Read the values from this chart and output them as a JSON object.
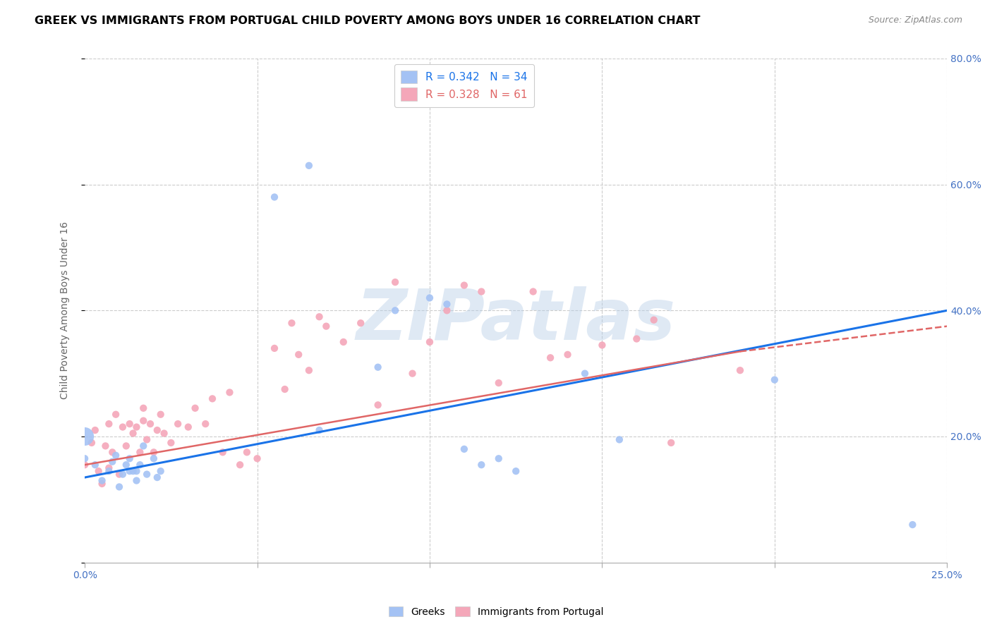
{
  "title": "GREEK VS IMMIGRANTS FROM PORTUGAL CHILD POVERTY AMONG BOYS UNDER 16 CORRELATION CHART",
  "source": "Source: ZipAtlas.com",
  "ylabel": "Child Poverty Among Boys Under 16",
  "xlim": [
    0.0,
    0.25
  ],
  "ylim": [
    0.0,
    0.8
  ],
  "xticks": [
    0.0,
    0.05,
    0.1,
    0.15,
    0.2,
    0.25
  ],
  "yticks": [
    0.0,
    0.2,
    0.4,
    0.6,
    0.8
  ],
  "xticklabels": [
    "0.0%",
    "",
    "",
    "",
    "",
    "25.0%"
  ],
  "yticklabels_right": [
    "",
    "20.0%",
    "40.0%",
    "60.0%",
    "80.0%"
  ],
  "greek_color": "#a4c2f4",
  "portugal_color": "#f4a7b9",
  "greek_line_color": "#1a73e8",
  "portugal_line_color": "#e06666",
  "legend_R_greek": "0.342",
  "legend_N_greek": "34",
  "legend_R_portugal": "0.328",
  "legend_N_portugal": "61",
  "watermark": "ZIPatlas",
  "background_color": "#ffffff",
  "grid_color": "#cccccc",
  "title_color": "#000000",
  "axis_label_color": "#666666",
  "tick_color": "#4472c4",
  "greek_points_x": [
    0.0,
    0.003,
    0.005,
    0.007,
    0.008,
    0.009,
    0.01,
    0.011,
    0.012,
    0.013,
    0.013,
    0.014,
    0.015,
    0.015,
    0.016,
    0.017,
    0.018,
    0.02,
    0.021,
    0.022,
    0.055,
    0.065,
    0.068,
    0.085,
    0.09,
    0.1,
    0.105,
    0.11,
    0.115,
    0.12,
    0.125,
    0.145,
    0.155,
    0.2,
    0.24
  ],
  "greek_points_y": [
    0.165,
    0.155,
    0.13,
    0.145,
    0.16,
    0.17,
    0.12,
    0.14,
    0.155,
    0.145,
    0.165,
    0.145,
    0.13,
    0.145,
    0.155,
    0.185,
    0.14,
    0.165,
    0.135,
    0.145,
    0.58,
    0.63,
    0.21,
    0.31,
    0.4,
    0.42,
    0.41,
    0.18,
    0.155,
    0.165,
    0.145,
    0.3,
    0.195,
    0.29,
    0.06
  ],
  "greek_large_x": [
    0.0
  ],
  "greek_large_y": [
    0.2
  ],
  "portugal_points_x": [
    0.0,
    0.002,
    0.003,
    0.004,
    0.005,
    0.006,
    0.007,
    0.007,
    0.008,
    0.009,
    0.01,
    0.011,
    0.012,
    0.013,
    0.014,
    0.015,
    0.016,
    0.017,
    0.017,
    0.018,
    0.019,
    0.02,
    0.021,
    0.022,
    0.023,
    0.025,
    0.027,
    0.03,
    0.032,
    0.035,
    0.037,
    0.04,
    0.042,
    0.045,
    0.047,
    0.05,
    0.055,
    0.058,
    0.06,
    0.062,
    0.065,
    0.068,
    0.07,
    0.075,
    0.08,
    0.085,
    0.09,
    0.095,
    0.1,
    0.105,
    0.11,
    0.115,
    0.12,
    0.13,
    0.135,
    0.14,
    0.15,
    0.16,
    0.165,
    0.17,
    0.19
  ],
  "portugal_points_y": [
    0.155,
    0.19,
    0.21,
    0.145,
    0.125,
    0.185,
    0.15,
    0.22,
    0.175,
    0.235,
    0.14,
    0.215,
    0.185,
    0.22,
    0.205,
    0.215,
    0.175,
    0.225,
    0.245,
    0.195,
    0.22,
    0.175,
    0.21,
    0.235,
    0.205,
    0.19,
    0.22,
    0.215,
    0.245,
    0.22,
    0.26,
    0.175,
    0.27,
    0.155,
    0.175,
    0.165,
    0.34,
    0.275,
    0.38,
    0.33,
    0.305,
    0.39,
    0.375,
    0.35,
    0.38,
    0.25,
    0.445,
    0.3,
    0.35,
    0.4,
    0.44,
    0.43,
    0.285,
    0.43,
    0.325,
    0.33,
    0.345,
    0.355,
    0.385,
    0.19,
    0.305
  ],
  "greece_line_x0": 0.0,
  "greece_line_y0": 0.135,
  "greece_line_x1": 0.25,
  "greece_line_y1": 0.4,
  "portugal_line_solid_x0": 0.0,
  "portugal_line_solid_y0": 0.155,
  "portugal_line_solid_x1": 0.19,
  "portugal_line_solid_y1": 0.335,
  "portugal_line_dash_x0": 0.19,
  "portugal_line_dash_y0": 0.335,
  "portugal_line_dash_x1": 0.25,
  "portugal_line_dash_y1": 0.375
}
